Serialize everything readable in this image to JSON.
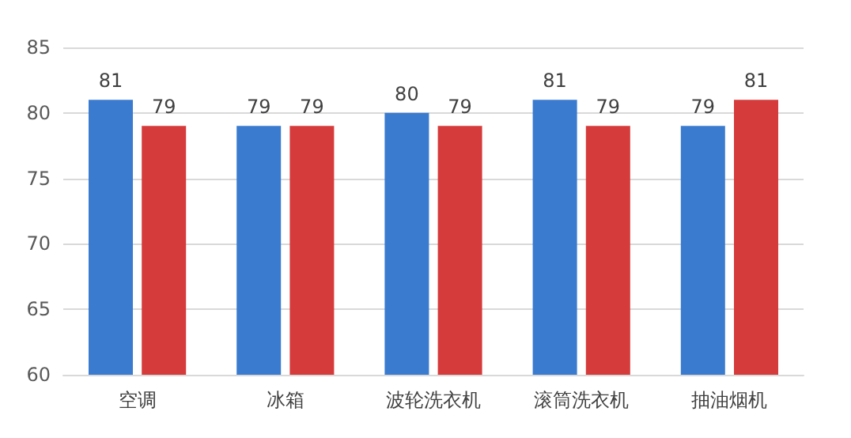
{
  "chart_data": {
    "type": "bar",
    "categories": [
      "空调",
      "冰箱",
      "波轮洗衣机",
      "滚筒洗衣机",
      "抽油烟机"
    ],
    "series": [
      {
        "color": "#3a7bd0",
        "values": [
          81,
          79,
          80,
          81,
          79
        ]
      },
      {
        "color": "#d63b3b",
        "values": [
          79,
          79,
          79,
          79,
          81
        ]
      }
    ],
    "ylim": [
      60,
      85
    ],
    "yticks": [
      60,
      65,
      70,
      75,
      80,
      85
    ],
    "grid": "y",
    "data_labels": true
  }
}
